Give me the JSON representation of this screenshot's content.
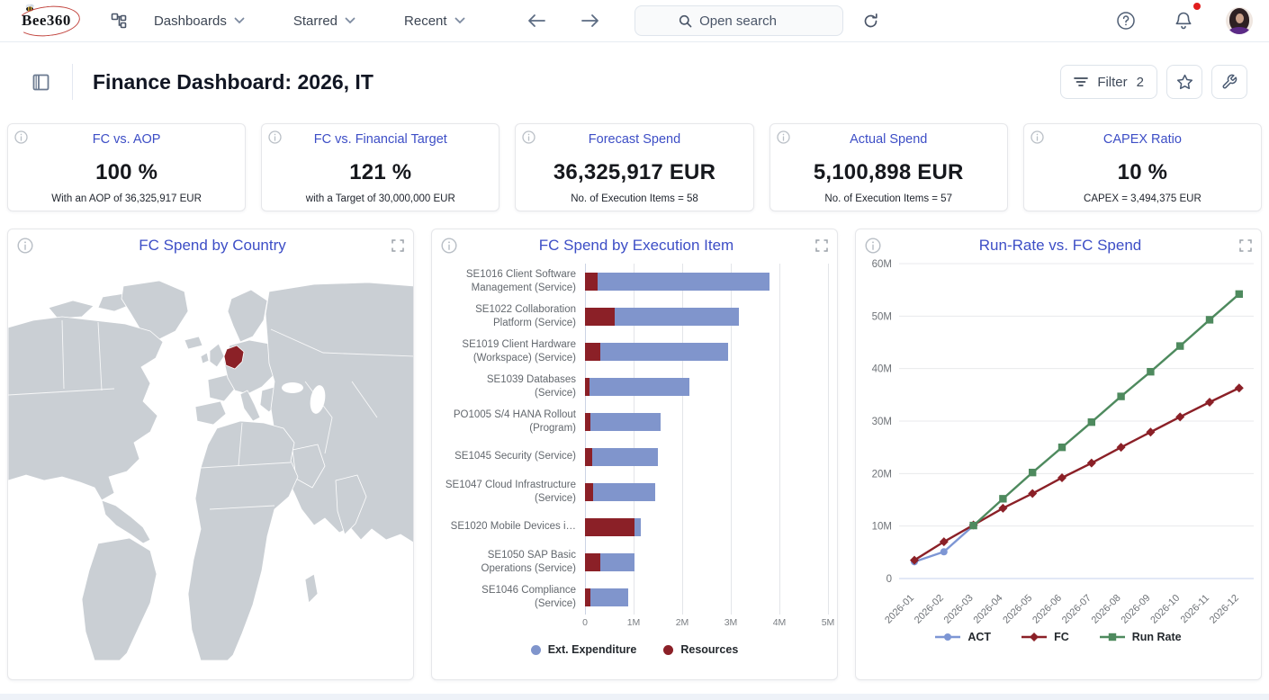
{
  "topbar": {
    "brand": "Bee360",
    "menus": [
      {
        "label": "Dashboards"
      },
      {
        "label": "Starred"
      },
      {
        "label": "Recent"
      }
    ],
    "search_placeholder": "Open search"
  },
  "header": {
    "title": "Finance Dashboard: 2026, IT",
    "filter_label": "Filter",
    "filter_count": "2"
  },
  "kpis": [
    {
      "title": "FC vs. AOP",
      "value": "100 %",
      "footer": "With an AOP of 36,325,917 EUR"
    },
    {
      "title": "FC vs. Financial Target",
      "value": "121 %",
      "footer": "with a Target of 30,000,000 EUR"
    },
    {
      "title": "Forecast Spend",
      "value": "36,325,917 EUR",
      "footer": "No. of Execution Items = 58"
    },
    {
      "title": "Actual Spend",
      "value": "5,100,898 EUR",
      "footer": "No. of Execution Items = 57"
    },
    {
      "title": "CAPEX Ratio",
      "value": "10 %",
      "footer": "CAPEX = 3,494,375 EUR"
    }
  ],
  "panels": {
    "map": {
      "title": "FC Spend by Country",
      "highlighted_country": "Germany"
    },
    "bar": {
      "title": "FC Spend by Execution Item"
    },
    "line": {
      "title": "Run-Rate vs. FC Spend"
    }
  },
  "colors": {
    "accent_blue": "#3d4ec6",
    "bar_blue": "#8095cc",
    "dark_red": "#8b2027",
    "green": "#4e8a5e",
    "act_blue": "#7d96d4",
    "map_land": "#cacfd4",
    "map_highlight": "#8b2127",
    "notification_red": "#e11d1d"
  },
  "chart_data": [
    {
      "type": "bar",
      "title": "FC Spend by Execution Item",
      "orientation": "horizontal",
      "stacked": true,
      "unit": "EUR millions",
      "categories": [
        "SE1016 Client Software Management (Service)",
        "SE1022 Collaboration Platform (Service)",
        "SE1019 Client Hardware (Workspace) (Service)",
        "SE1039 Databases (Service)",
        "PO1005 S/4 HANA Rollout (Program)",
        "SE1045 Security (Service)",
        "SE1047 Cloud Infrastructure (Service)",
        "SE1020 Mobile Devices i…",
        "SE1050 SAP Basic Operations (Service)",
        "SE1046 Compliance (Service)"
      ],
      "series": [
        {
          "name": "Resources",
          "color": "#8b2027",
          "values": [
            0.25,
            0.62,
            0.32,
            0.09,
            0.12,
            0.14,
            0.16,
            1.02,
            0.31,
            0.11
          ]
        },
        {
          "name": "Ext. Expenditure",
          "color": "#8095cc",
          "values": [
            3.55,
            2.55,
            2.63,
            2.05,
            1.43,
            1.36,
            1.29,
            0.13,
            0.71,
            0.78
          ]
        }
      ],
      "legend": [
        "Ext. Expenditure",
        "Resources"
      ],
      "legend_position": "bottom",
      "xticks": [
        "0",
        "1M",
        "2M",
        "3M",
        "4M",
        "5M"
      ],
      "xlim": [
        0,
        5
      ]
    },
    {
      "type": "line",
      "title": "Run-Rate vs. FC Spend",
      "unit": "EUR millions",
      "x": [
        "2026-01",
        "2026-02",
        "2026-03",
        "2026-04",
        "2026-05",
        "2026-06",
        "2026-07",
        "2026-08",
        "2026-09",
        "2026-10",
        "2026-11",
        "2026-12"
      ],
      "series": [
        {
          "name": "ACT",
          "color": "#7d96d4",
          "marker": "circle",
          "values": [
            3.2,
            5.1,
            10.1,
            null,
            null,
            null,
            null,
            null,
            null,
            null,
            null,
            null
          ]
        },
        {
          "name": "FC",
          "color": "#8b2027",
          "marker": "diamond",
          "values": [
            3.5,
            7.0,
            10.2,
            13.4,
            16.2,
            19.2,
            22.0,
            25.0,
            27.9,
            30.8,
            33.6,
            36.3
          ]
        },
        {
          "name": "Run Rate",
          "color": "#4e8a5e",
          "marker": "square",
          "values": [
            null,
            null,
            10.1,
            15.2,
            20.2,
            25.0,
            29.8,
            34.7,
            39.4,
            44.3,
            49.3,
            54.2
          ]
        }
      ],
      "yticks": [
        "0",
        "10M",
        "20M",
        "30M",
        "40M",
        "50M",
        "60M"
      ],
      "ylim": [
        0,
        60
      ],
      "legend_position": "bottom"
    }
  ]
}
